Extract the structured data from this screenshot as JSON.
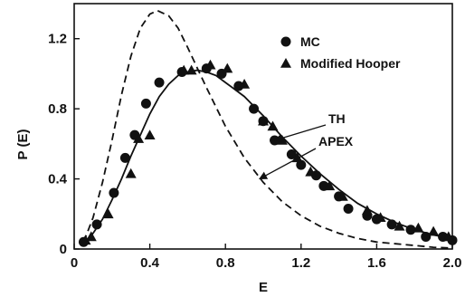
{
  "chart_data": {
    "type": "scatter",
    "xlabel": "E",
    "ylabel": "P (E)",
    "xlim": [
      0,
      2.0
    ],
    "ylim": [
      0,
      1.4
    ],
    "xticks": [
      {
        "value": 0,
        "label": "0"
      },
      {
        "value": 0.4,
        "label": "0.4"
      },
      {
        "value": 0.8,
        "label": "0.8"
      },
      {
        "value": 1.2,
        "label": "1.2"
      },
      {
        "value": 1.6,
        "label": "1.6"
      },
      {
        "value": 2.0,
        "label": "2.0"
      }
    ],
    "yticks": [
      {
        "value": 0,
        "label": "0"
      },
      {
        "value": 0.4,
        "label": "0.4"
      },
      {
        "value": 0.8,
        "label": "0.8"
      },
      {
        "value": 1.2,
        "label": "1.2"
      }
    ],
    "grid": false,
    "legend_position": "top-right",
    "series": [
      {
        "name": "MC",
        "kind": "points",
        "marker": "circle",
        "points": [
          [
            0.05,
            0.04
          ],
          [
            0.12,
            0.14
          ],
          [
            0.21,
            0.32
          ],
          [
            0.27,
            0.52
          ],
          [
            0.32,
            0.65
          ],
          [
            0.38,
            0.83
          ],
          [
            0.45,
            0.95
          ],
          [
            0.57,
            1.01
          ],
          [
            0.7,
            1.03
          ],
          [
            0.78,
            1.0
          ],
          [
            0.87,
            0.93
          ],
          [
            0.95,
            0.8
          ],
          [
            1.0,
            0.73
          ],
          [
            1.06,
            0.62
          ],
          [
            1.15,
            0.54
          ],
          [
            1.2,
            0.48
          ],
          [
            1.28,
            0.42
          ],
          [
            1.32,
            0.36
          ],
          [
            1.4,
            0.3
          ],
          [
            1.45,
            0.23
          ],
          [
            1.55,
            0.19
          ],
          [
            1.6,
            0.17
          ],
          [
            1.68,
            0.14
          ],
          [
            1.78,
            0.11
          ],
          [
            1.86,
            0.07
          ],
          [
            1.95,
            0.07
          ],
          [
            2.0,
            0.05
          ]
        ]
      },
      {
        "name": "Modified Hooper",
        "kind": "points",
        "marker": "triangle",
        "points": [
          [
            0.06,
            0.05
          ],
          [
            0.09,
            0.07
          ],
          [
            0.18,
            0.2
          ],
          [
            0.3,
            0.43
          ],
          [
            0.34,
            0.63
          ],
          [
            0.4,
            0.65
          ],
          [
            0.58,
            1.02
          ],
          [
            0.62,
            1.02
          ],
          [
            0.72,
            1.05
          ],
          [
            0.81,
            1.03
          ],
          [
            0.9,
            0.94
          ],
          [
            1.0,
            0.73
          ],
          [
            1.05,
            0.7
          ],
          [
            1.1,
            0.62
          ],
          [
            1.18,
            0.52
          ],
          [
            1.25,
            0.44
          ],
          [
            1.35,
            0.36
          ],
          [
            1.42,
            0.3
          ],
          [
            1.55,
            0.22
          ],
          [
            1.62,
            0.18
          ],
          [
            1.72,
            0.13
          ],
          [
            1.82,
            0.12
          ],
          [
            1.9,
            0.1
          ],
          [
            1.98,
            0.07
          ]
        ]
      },
      {
        "name": "TH",
        "kind": "line",
        "style": "solid",
        "points": [
          [
            0.05,
            0.03
          ],
          [
            0.1,
            0.09
          ],
          [
            0.15,
            0.17
          ],
          [
            0.2,
            0.28
          ],
          [
            0.25,
            0.4
          ],
          [
            0.3,
            0.53
          ],
          [
            0.35,
            0.65
          ],
          [
            0.4,
            0.77
          ],
          [
            0.45,
            0.87
          ],
          [
            0.5,
            0.94
          ],
          [
            0.55,
            0.99
          ],
          [
            0.6,
            1.01
          ],
          [
            0.65,
            1.02
          ],
          [
            0.7,
            1.01
          ],
          [
            0.75,
            0.99
          ],
          [
            0.8,
            0.95
          ],
          [
            0.9,
            0.87
          ],
          [
            1.0,
            0.76
          ],
          [
            1.1,
            0.64
          ],
          [
            1.2,
            0.53
          ],
          [
            1.3,
            0.43
          ],
          [
            1.4,
            0.34
          ],
          [
            1.5,
            0.26
          ],
          [
            1.6,
            0.2
          ],
          [
            1.7,
            0.15
          ],
          [
            1.8,
            0.11
          ],
          [
            1.9,
            0.08
          ],
          [
            2.0,
            0.06
          ]
        ]
      },
      {
        "name": "APEX",
        "kind": "line",
        "style": "dashed",
        "points": [
          [
            0.05,
            0.04
          ],
          [
            0.1,
            0.18
          ],
          [
            0.15,
            0.38
          ],
          [
            0.2,
            0.62
          ],
          [
            0.25,
            0.88
          ],
          [
            0.3,
            1.1
          ],
          [
            0.35,
            1.26
          ],
          [
            0.4,
            1.34
          ],
          [
            0.44,
            1.36
          ],
          [
            0.5,
            1.33
          ],
          [
            0.55,
            1.26
          ],
          [
            0.6,
            1.15
          ],
          [
            0.7,
            0.92
          ],
          [
            0.8,
            0.7
          ],
          [
            0.9,
            0.52
          ],
          [
            1.0,
            0.38
          ],
          [
            1.1,
            0.27
          ],
          [
            1.2,
            0.19
          ],
          [
            1.3,
            0.13
          ],
          [
            1.4,
            0.09
          ],
          [
            1.5,
            0.06
          ],
          [
            1.6,
            0.04
          ],
          [
            1.7,
            0.03
          ],
          [
            1.8,
            0.02
          ],
          [
            1.9,
            0.01
          ],
          [
            2.0,
            0.005
          ]
        ]
      }
    ],
    "annotations": [
      {
        "text": "TH",
        "points_to": [
          1.06,
          0.62
        ]
      },
      {
        "text": "APEX",
        "points_to": [
          0.98,
          0.4
        ]
      }
    ]
  }
}
